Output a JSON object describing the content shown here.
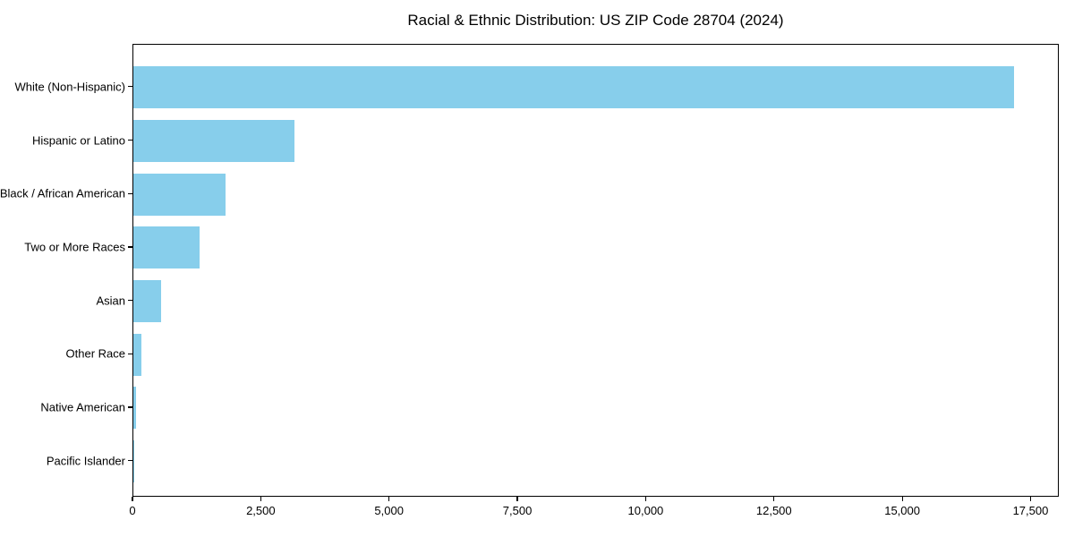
{
  "chart_data": {
    "type": "bar",
    "orientation": "horizontal",
    "title": "Racial & Ethnic Distribution: US ZIP Code 28704 (2024)",
    "xlabel": "",
    "ylabel": "",
    "categories": [
      "White (Non-Hispanic)",
      "Hispanic or Latino",
      "Black / African American",
      "Two or More Races",
      "Asian",
      "Other Race",
      "Native American",
      "Pacific Islander"
    ],
    "values": [
      17200,
      3150,
      1800,
      1300,
      550,
      150,
      50,
      10
    ],
    "xlim": [
      0,
      18050
    ],
    "xticks": [
      0,
      2500,
      5000,
      7500,
      10000,
      12500,
      15000,
      17500
    ],
    "xtick_labels": [
      "0",
      "2,500",
      "5,000",
      "7,500",
      "10,000",
      "12,500",
      "15,000",
      "17,500"
    ],
    "bar_color": "#87CEEB",
    "grid": false,
    "legend": null,
    "background_color": "#ffffff",
    "spine_color": "#000000"
  }
}
